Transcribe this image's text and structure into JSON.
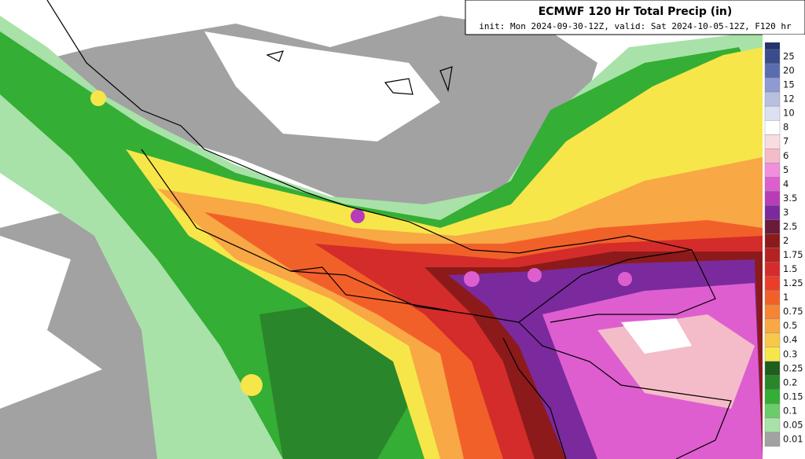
{
  "header": {
    "title": "ECMWF 120 Hr Total Precip (in)",
    "subtitle": "init: Mon 2024-09-30-12Z, valid: Sat 2024-10-05-12Z, F120 hr"
  },
  "colorbar": {
    "items": [
      {
        "label": "25",
        "color": "#3a4c8c"
      },
      {
        "label": "20",
        "color": "#5a6cb0"
      },
      {
        "label": "15",
        "color": "#8e9ad0"
      },
      {
        "label": "12",
        "color": "#b8c0e0"
      },
      {
        "label": "10",
        "color": "#dde0f0"
      },
      {
        "label": "8",
        "color": "#ffffff"
      },
      {
        "label": "7",
        "color": "#f8dde0"
      },
      {
        "label": "6",
        "color": "#f4bcc8"
      },
      {
        "label": "5",
        "color": "#f090dc"
      },
      {
        "label": "4",
        "color": "#de5ed0"
      },
      {
        "label": "3.5",
        "color": "#b83cb8"
      },
      {
        "label": "3",
        "color": "#7a2a9c"
      },
      {
        "label": "2.5",
        "color": "#6a1a3a"
      },
      {
        "label": "2",
        "color": "#8c1a1a"
      },
      {
        "label": "1.75",
        "color": "#b42222"
      },
      {
        "label": "1.5",
        "color": "#d42c2a"
      },
      {
        "label": "1.25",
        "color": "#ea3e2a"
      },
      {
        "label": "1",
        "color": "#f2602a"
      },
      {
        "label": "0.75",
        "color": "#f68432"
      },
      {
        "label": "0.5",
        "color": "#f8a844"
      },
      {
        "label": "0.4",
        "color": "#f8c84a"
      },
      {
        "label": "0.3",
        "color": "#f6e64a"
      },
      {
        "label": "0.25",
        "color": "#1e5e1e"
      },
      {
        "label": "0.2",
        "color": "#2a862a"
      },
      {
        "label": "0.15",
        "color": "#34ae34"
      },
      {
        "label": "0.1",
        "color": "#6acc6a"
      },
      {
        "label": "0.05",
        "color": "#a8e2a8"
      },
      {
        "label": "0.01",
        "color": "#a2a2a2"
      }
    ]
  }
}
